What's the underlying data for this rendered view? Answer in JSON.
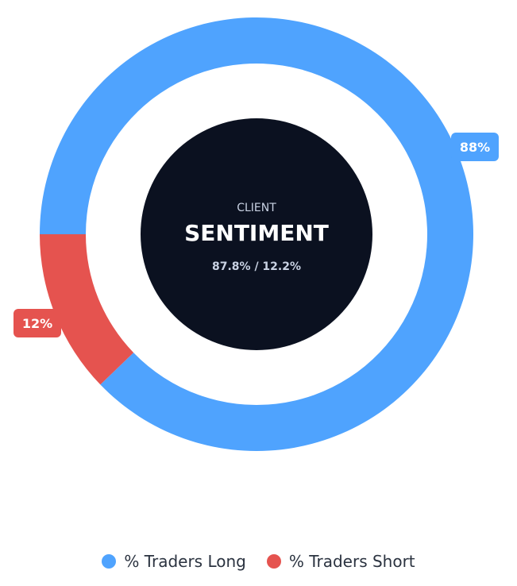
{
  "chart_data": {
    "type": "pie",
    "categories": [
      "% Traders Long",
      "% Traders Short"
    ],
    "values": [
      87.8,
      12.2
    ],
    "data_labels": [
      "88%",
      "12%"
    ],
    "colors": [
      "#4FA3FE",
      "#E5534F"
    ],
    "center": {
      "eyebrow": "CLIENT",
      "headline": "SENTIMENT",
      "ratio": "87.8% / 12.2%",
      "fill": "#0B1120"
    },
    "legend_position": "bottom"
  }
}
